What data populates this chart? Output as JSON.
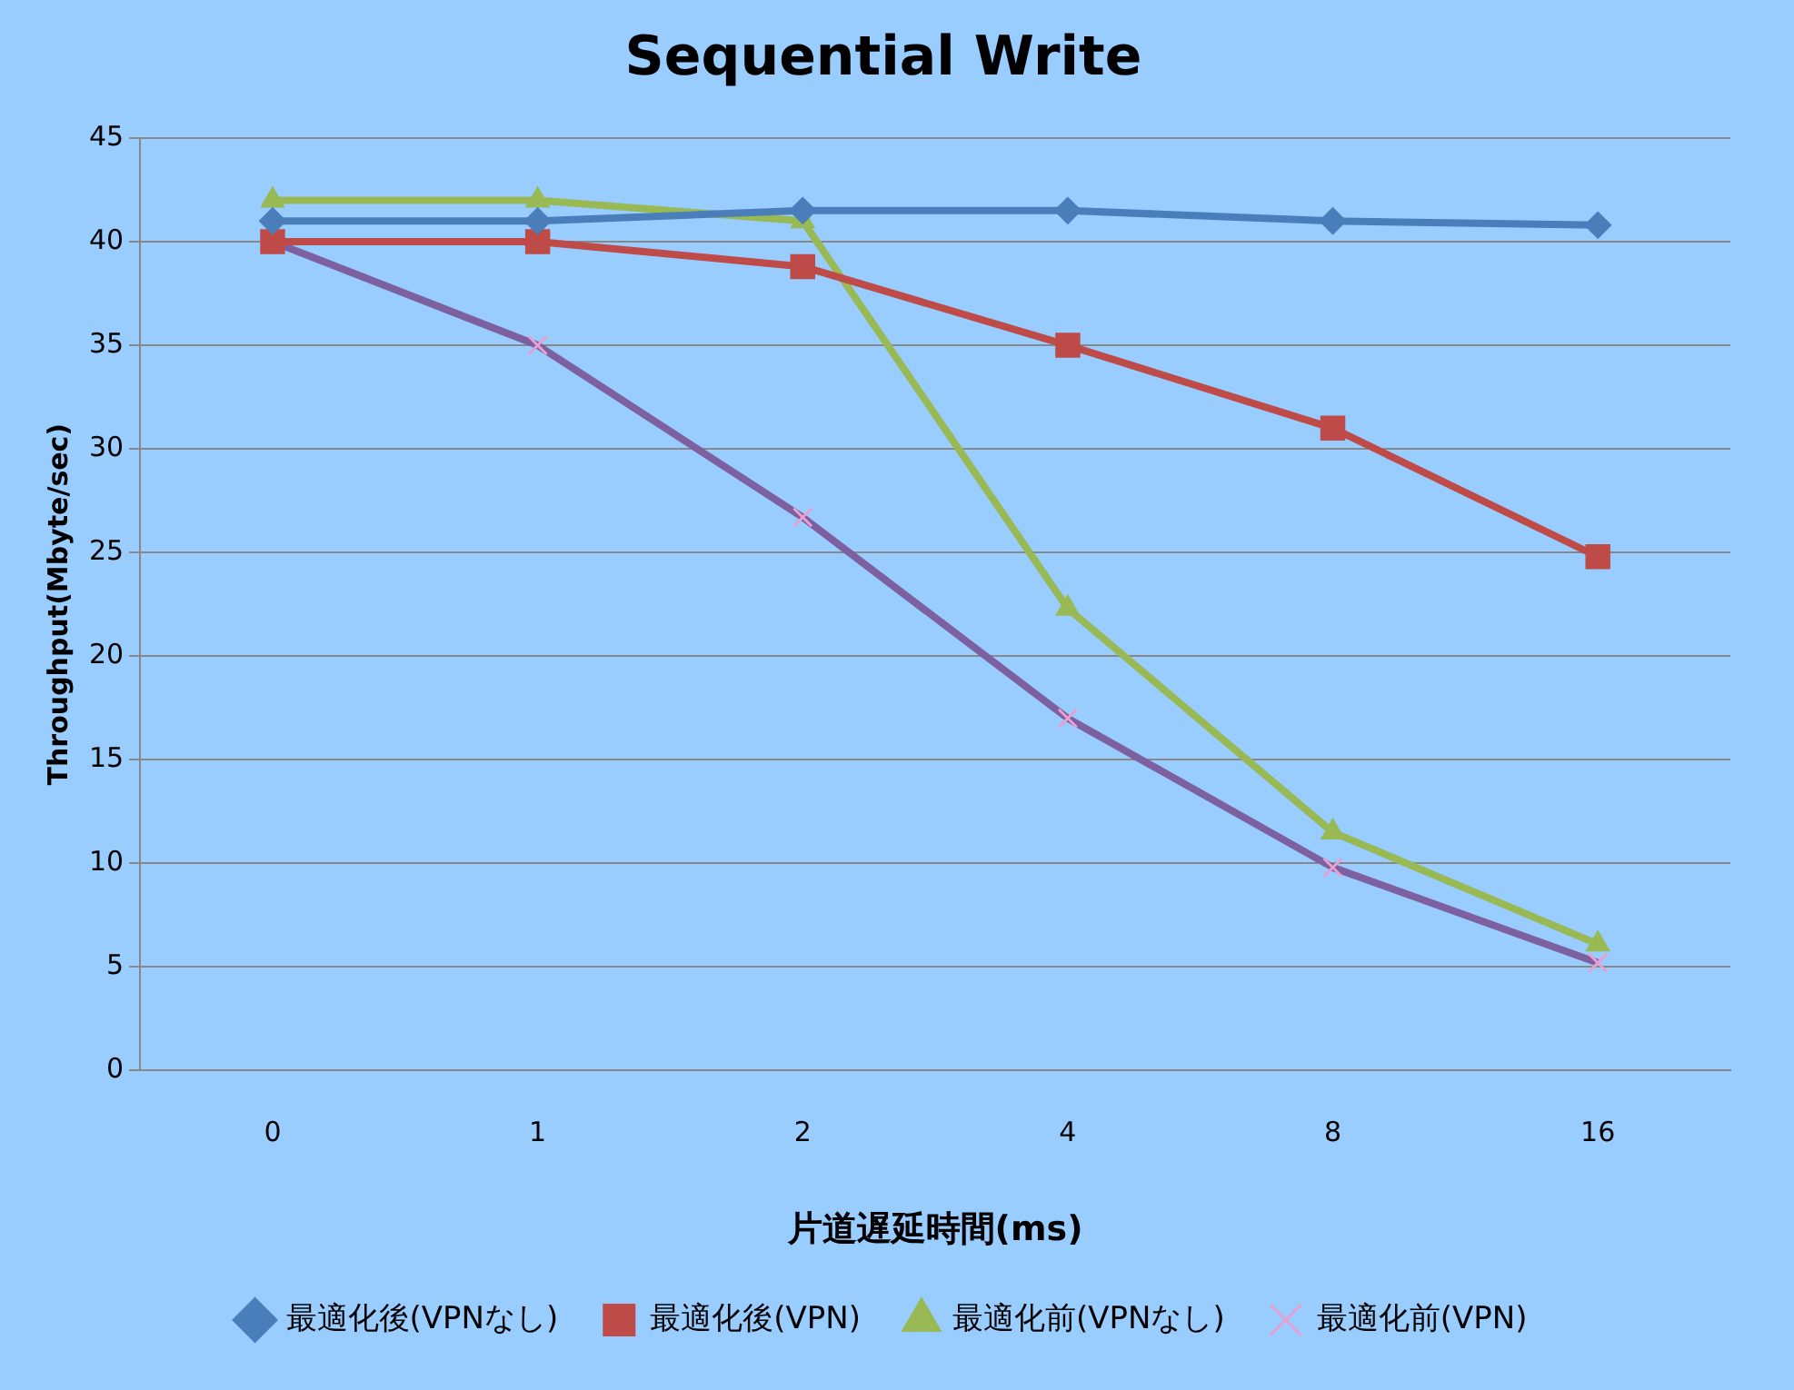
{
  "chart_data": {
    "type": "line",
    "title": "Sequential Write",
    "xlabel": "片道遅延時間(ms)",
    "ylabel": "Throughput(Mbyte/sec)",
    "categories": [
      "0",
      "1",
      "2",
      "4",
      "8",
      "16"
    ],
    "ylim": [
      0,
      45
    ],
    "yticks": [
      0,
      5,
      10,
      15,
      20,
      25,
      30,
      35,
      40,
      45
    ],
    "grid": "y",
    "legend": "bottom",
    "line_style": "solid",
    "series": [
      {
        "name": "最適化後(VPNなし)",
        "color": "#4a7ebb",
        "marker": "diamond",
        "values": [
          41,
          41,
          41.5,
          41.5,
          41,
          40.8
        ]
      },
      {
        "name": "最適化後(VPN)",
        "color": "#be4b48",
        "marker": "square",
        "values": [
          40,
          40,
          38.8,
          35,
          31,
          24.8
        ]
      },
      {
        "name": "最適化前(VPNなし)",
        "color": "#98b954",
        "marker": "triangle",
        "values": [
          42,
          42,
          41,
          22.3,
          11.5,
          6.1
        ]
      },
      {
        "name": "最適化前(VPN)",
        "color": "#7d60a0",
        "marker": "cross",
        "values": [
          40,
          35,
          26.7,
          17,
          9.8,
          5.2
        ]
      }
    ]
  }
}
